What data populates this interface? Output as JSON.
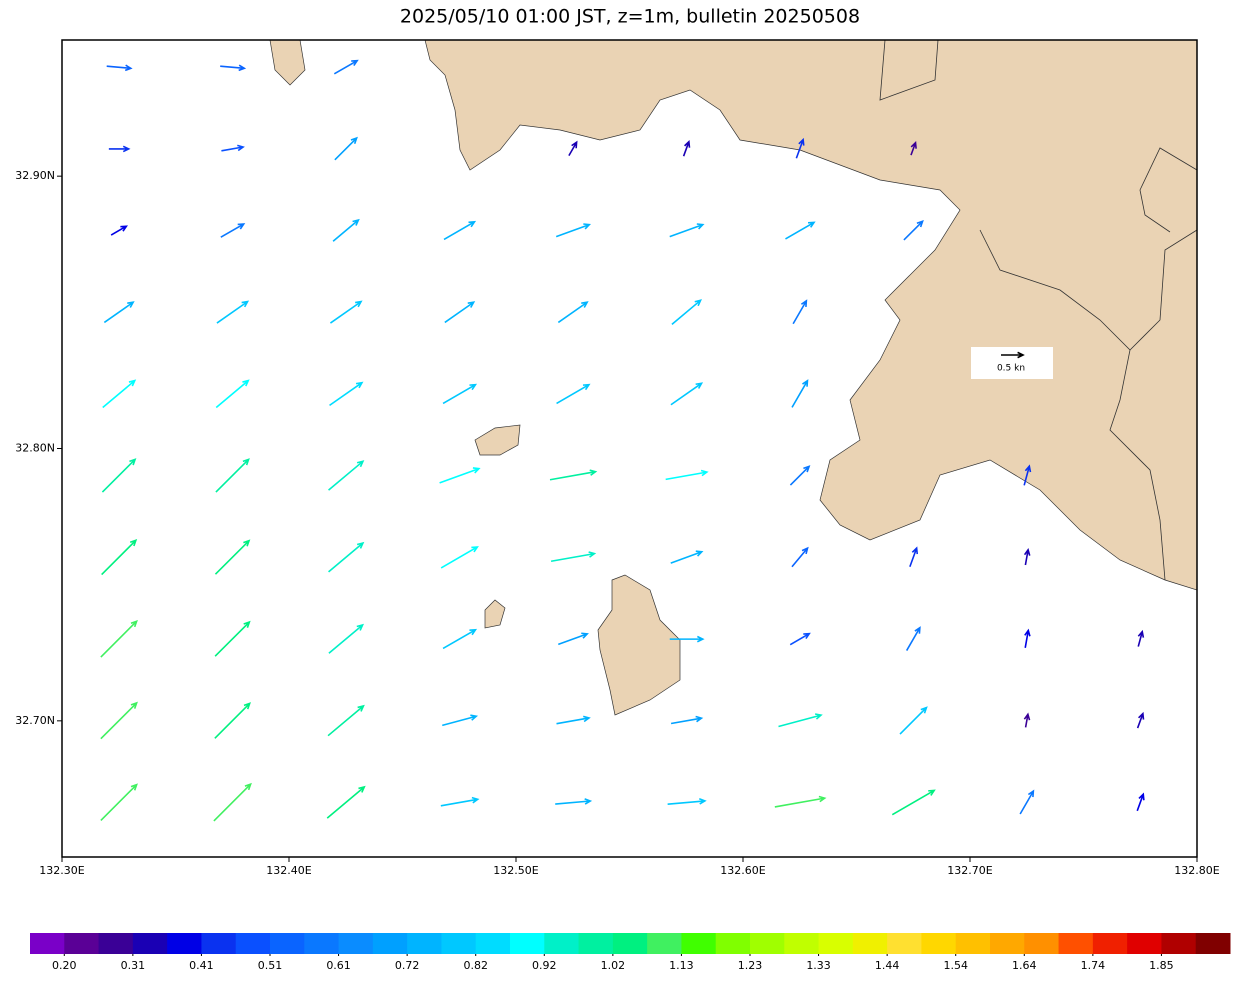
{
  "chart_data": {
    "type": "quiver",
    "title": "2025/05/10 01:00 JST, z=1m, bulletin 20250508",
    "xlim": [
      132.3,
      132.8
    ],
    "ylim": [
      32.65,
      32.95
    ],
    "xticks": [
      {
        "value": 132.3,
        "label": "132.30E"
      },
      {
        "value": 132.4,
        "label": "132.40E"
      },
      {
        "value": 132.5,
        "label": "132.50E"
      },
      {
        "value": 132.6,
        "label": "132.60E"
      },
      {
        "value": 132.7,
        "label": "132.70E"
      },
      {
        "value": 132.8,
        "label": "132.80E"
      }
    ],
    "yticks": [
      {
        "value": 32.7,
        "label": "32.70N"
      },
      {
        "value": 32.8,
        "label": "32.80N"
      },
      {
        "value": 32.9,
        "label": "32.90N"
      }
    ],
    "reference": {
      "speed": 0.5,
      "label": "0.5 kn"
    },
    "field": {
      "lon": [
        132.325,
        132.375,
        132.425,
        132.475,
        132.525,
        132.575,
        132.625,
        132.675,
        132.725,
        132.775
      ],
      "lat": [
        32.67,
        32.7,
        32.73,
        32.76,
        32.79,
        32.82,
        32.85,
        32.88,
        32.91,
        32.94
      ],
      "speed": [
        [
          1.15,
          1.18,
          1.1,
          0.85,
          0.8,
          0.85,
          1.15,
          1.1,
          0.6,
          0.4
        ],
        [
          1.15,
          1.12,
          1.05,
          0.8,
          0.75,
          0.7,
          1.0,
          0.85,
          0.3,
          0.35
        ],
        [
          1.15,
          1.1,
          1.0,
          0.85,
          0.7,
          0.75,
          0.5,
          0.6,
          0.4,
          0.35
        ],
        [
          1.1,
          1.08,
          1.02,
          0.95,
          1.0,
          0.75,
          0.55,
          0.45,
          0.35,
          null
        ],
        [
          1.05,
          1.05,
          1.02,
          0.95,
          1.05,
          0.95,
          0.6,
          null,
          0.45,
          null
        ],
        [
          0.95,
          0.95,
          0.9,
          0.85,
          0.85,
          0.85,
          0.7,
          null,
          null,
          null
        ],
        [
          0.8,
          0.85,
          0.85,
          0.8,
          0.8,
          0.85,
          0.6,
          null,
          null,
          null
        ],
        [
          0.4,
          0.6,
          0.75,
          0.8,
          0.8,
          0.8,
          0.75,
          0.6,
          null,
          null
        ],
        [
          0.45,
          0.5,
          0.7,
          null,
          0.35,
          0.35,
          0.45,
          0.3,
          null,
          null
        ],
        [
          0.55,
          0.55,
          0.6,
          null,
          null,
          null,
          null,
          null,
          null,
          null
        ]
      ],
      "direction": [
        [
          45,
          45,
          50,
          80,
          85,
          85,
          80,
          60,
          30,
          20
        ],
        [
          45,
          45,
          50,
          75,
          80,
          80,
          75,
          45,
          10,
          20
        ],
        [
          45,
          45,
          50,
          60,
          70,
          90,
          60,
          30,
          10,
          15
        ],
        [
          45,
          45,
          50,
          60,
          80,
          70,
          40,
          20,
          10,
          null
        ],
        [
          45,
          45,
          50,
          70,
          80,
          80,
          45,
          null,
          15,
          null
        ],
        [
          50,
          50,
          55,
          60,
          60,
          55,
          30,
          null,
          null,
          null
        ],
        [
          55,
          55,
          55,
          55,
          55,
          50,
          30,
          null,
          null,
          null
        ],
        [
          60,
          60,
          50,
          60,
          70,
          70,
          60,
          45,
          null,
          null
        ],
        [
          90,
          80,
          45,
          null,
          30,
          20,
          20,
          20,
          null,
          null
        ],
        [
          95,
          95,
          60,
          null,
          null,
          null,
          null,
          null,
          null,
          null
        ]
      ]
    },
    "colorbar": {
      "colors": [
        "#7a00c8",
        "#5a0096",
        "#3a0096",
        "#1a00b4",
        "#0000e6",
        "#0a32f0",
        "#0a50ff",
        "#0a64ff",
        "#0a78ff",
        "#0a8cff",
        "#00a0ff",
        "#00b4ff",
        "#00c8ff",
        "#00dcff",
        "#00ffff",
        "#00f0c8",
        "#00f0a0",
        "#00f080",
        "#40f060",
        "#40ff00",
        "#80ff00",
        "#a0ff00",
        "#c0ff00",
        "#d8ff00",
        "#f0f000",
        "#ffe030",
        "#ffd700",
        "#ffc000",
        "#ffa800",
        "#ff9000",
        "#ff5000",
        "#f02000",
        "#e00000",
        "#b00000",
        "#800000"
      ],
      "ticks": [
        {
          "value": 0.2,
          "label": "0.20"
        },
        0.31,
        0.41,
        0.51,
        0.61,
        0.72,
        0.82,
        0.92,
        1.02,
        1.13,
        1.23,
        1.33,
        1.44,
        1.54,
        1.64,
        1.74,
        1.85
      ]
    }
  }
}
